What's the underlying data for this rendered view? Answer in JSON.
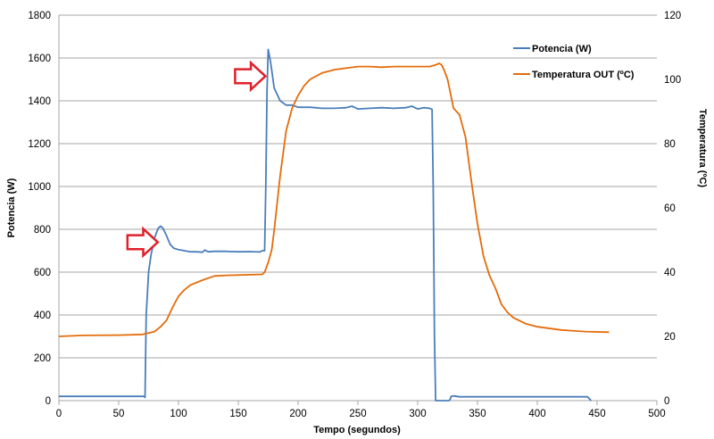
{
  "chart_data": {
    "type": "line",
    "xlabel": "Tempo (segundos)",
    "ylabel_left": "Potencia (W)",
    "ylabel_right": "Temperatura  (ºC)",
    "xlim": [
      0,
      500
    ],
    "ylim_left": [
      0,
      1800
    ],
    "ylim_right": [
      0,
      120
    ],
    "x_ticks": [
      "0",
      "50",
      "100",
      "150",
      "200",
      "250",
      "300",
      "350",
      "400",
      "450",
      "500"
    ],
    "y_left_ticks": [
      "0",
      "200",
      "400",
      "600",
      "800",
      "1000",
      "1200",
      "1400",
      "1600",
      "1800"
    ],
    "y_right_ticks": [
      "0",
      "20",
      "40",
      "60",
      "80",
      "100",
      "120"
    ],
    "grid": "horizontal",
    "legend_position": "top-right",
    "colors": {
      "potencia": "#4a7ebb",
      "temperatura": "#e46c0a",
      "arrow": "#e0202a",
      "grid": "#a6a6a6"
    },
    "series": [
      {
        "name": "Potencia (W)",
        "axis": "left",
        "x": [
          0,
          50,
          71,
          72,
          73,
          75,
          77,
          80,
          83,
          85,
          87,
          90,
          93,
          96,
          100,
          105,
          110,
          115,
          120,
          122,
          125,
          130,
          140,
          150,
          160,
          168,
          170,
          172,
          173,
          174,
          175,
          177,
          180,
          185,
          190,
          195,
          200,
          210,
          220,
          230,
          240,
          245,
          250,
          260,
          270,
          280,
          290,
          295,
          300,
          305,
          310,
          312,
          313,
          314,
          315,
          320,
          326,
          327,
          328,
          330,
          335,
          350,
          400,
          442,
          445
        ],
        "y": [
          20,
          20,
          20,
          15,
          400,
          600,
          680,
          760,
          805,
          815,
          805,
          770,
          730,
          712,
          705,
          700,
          695,
          695,
          693,
          703,
          695,
          697,
          697,
          695,
          696,
          694,
          700,
          700,
          1000,
          1450,
          1640,
          1580,
          1460,
          1400,
          1380,
          1380,
          1370,
          1370,
          1365,
          1365,
          1368,
          1375,
          1362,
          1365,
          1368,
          1365,
          1368,
          1375,
          1362,
          1368,
          1365,
          1360,
          1000,
          300,
          0,
          0,
          0,
          5,
          20,
          22,
          18,
          18,
          18,
          18,
          0
        ]
      },
      {
        "name": "Temperatura OUT (ºC)",
        "axis": "right",
        "x": [
          0,
          20,
          50,
          70,
          80,
          85,
          90,
          95,
          100,
          105,
          110,
          120,
          130,
          140,
          160,
          170,
          172,
          175,
          178,
          180,
          185,
          190,
          195,
          200,
          205,
          210,
          220,
          230,
          240,
          250,
          260,
          270,
          280,
          290,
          300,
          310,
          315,
          318,
          320,
          322,
          325,
          330,
          335,
          340,
          345,
          350,
          355,
          360,
          365,
          370,
          375,
          380,
          390,
          400,
          420,
          440,
          460
        ],
        "y": [
          20,
          20.3,
          20.4,
          20.6,
          21.5,
          23,
          25,
          29,
          32.5,
          34.5,
          36,
          37.5,
          38.8,
          39,
          39.2,
          39.3,
          40,
          43,
          47,
          53,
          70,
          84,
          91,
          95,
          98,
          100,
          102,
          103,
          103.5,
          104,
          104,
          103.8,
          104,
          104,
          104,
          104,
          104.5,
          105,
          104.5,
          103,
          100,
          91,
          89,
          82,
          68,
          55,
          45,
          39,
          35,
          30,
          27.5,
          25.8,
          24,
          23,
          22,
          21.5,
          21.3
        ]
      }
    ],
    "annotations": [
      {
        "shape": "arrow-right",
        "x": 70,
        "y_left": 740
      },
      {
        "shape": "arrow-right",
        "x": 160,
        "y_left": 1515
      }
    ]
  }
}
